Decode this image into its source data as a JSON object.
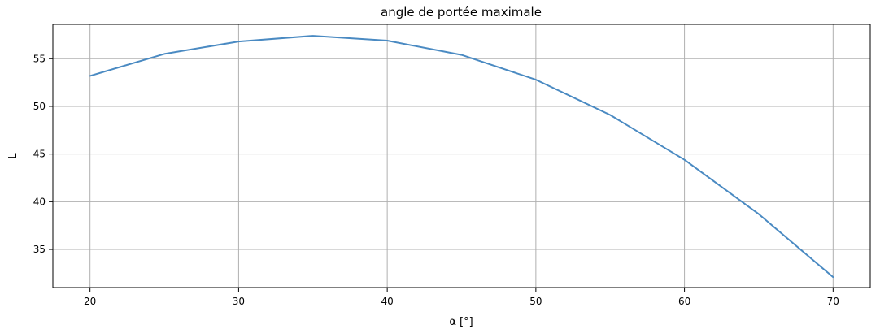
{
  "chart_data": {
    "type": "line",
    "title": "angle de portée maximale",
    "xlabel": "α [°]",
    "ylabel": "L",
    "x": [
      20,
      25,
      30,
      35,
      40,
      45,
      50,
      55,
      60,
      65,
      70
    ],
    "series": [
      {
        "values": [
          53.2,
          55.5,
          56.8,
          57.4,
          56.9,
          55.4,
          52.8,
          49.1,
          44.4,
          38.7,
          32.1
        ],
        "color": "#4a8ac2"
      }
    ],
    "xlim": [
      17.5,
      72.5
    ],
    "ylim": [
      31.0,
      58.6
    ],
    "xticks": [
      20,
      30,
      40,
      50,
      60,
      70
    ],
    "xtick_labels": [
      "20",
      "30",
      "40",
      "50",
      "60",
      "70"
    ],
    "yticks": [
      35,
      40,
      45,
      50,
      55
    ],
    "ytick_labels": [
      "35",
      "40",
      "45",
      "50",
      "55"
    ],
    "grid": true,
    "colors": {
      "grid": "#b0b0b0",
      "axes": "#000000"
    }
  }
}
